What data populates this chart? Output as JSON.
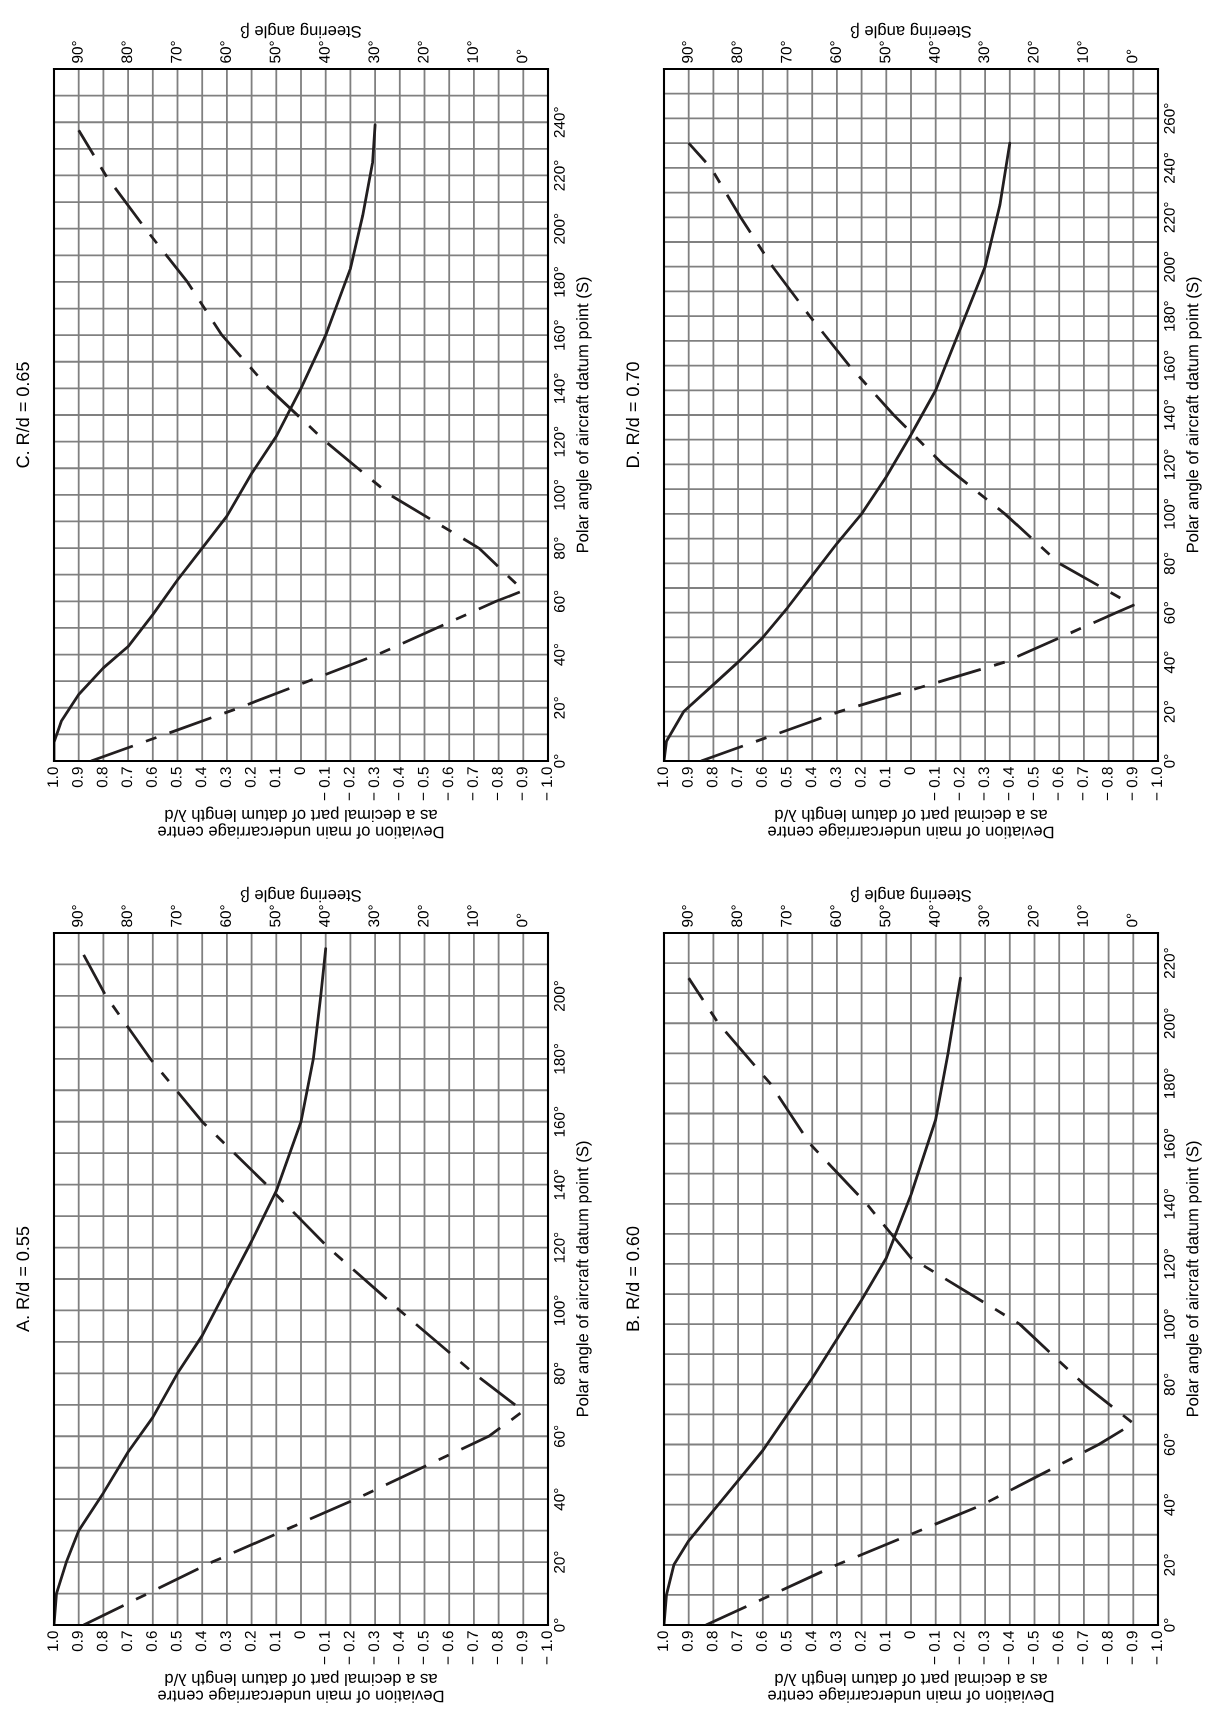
{
  "chart_data": [
    {
      "type": "line",
      "title": "A. R/d = 0.55",
      "ylabel": "Polar angle of aircraft datum point (S)",
      "xlabel": "Deviation of main undercarriage centre\nas a decimal part of datum length λ/d",
      "x2label": "Steering angle β",
      "ylim": [
        0,
        220
      ],
      "yticks": [
        {
          "value": 0,
          "label": "0°"
        },
        {
          "value": 10,
          "label": null
        },
        {
          "value": 20,
          "label": "20°"
        },
        {
          "value": 30,
          "label": null
        },
        {
          "value": 40,
          "label": "40°"
        },
        {
          "value": 50,
          "label": null
        },
        {
          "value": 60,
          "label": "60°"
        },
        {
          "value": 70,
          "label": null
        },
        {
          "value": 80,
          "label": "80°"
        },
        {
          "value": 90,
          "label": null
        },
        {
          "value": 100,
          "label": "100°"
        },
        {
          "value": 110,
          "label": null
        },
        {
          "value": 120,
          "label": "120°"
        },
        {
          "value": 130,
          "label": null
        },
        {
          "value": 140,
          "label": "140°"
        },
        {
          "value": 150,
          "label": null
        },
        {
          "value": 160,
          "label": "160°"
        },
        {
          "value": 170,
          "label": null
        },
        {
          "value": 180,
          "label": "180°"
        },
        {
          "value": 190,
          "label": null
        },
        {
          "value": 200,
          "label": "200°"
        },
        {
          "value": 210,
          "label": null
        }
      ],
      "xlim": [
        1.0,
        -1.0
      ],
      "xticks": [
        {
          "value": 1.0,
          "label": "1.0"
        },
        0.9,
        0.8,
        0.7,
        0.6,
        0.5,
        0.4,
        0.3,
        0.2,
        0.1,
        0,
        {
          "value": -0.1,
          "label": "− 0.1"
        },
        {
          "value": -0.2,
          "label": "− 0.2"
        },
        {
          "value": -0.3,
          "label": "− 0.3"
        },
        {
          "value": -0.4,
          "label": "− 0.4"
        },
        {
          "value": -0.5,
          "label": "− 0.5"
        },
        {
          "value": -0.6,
          "label": "− 0.6"
        },
        {
          "value": -0.7,
          "label": "− 0.7"
        },
        {
          "value": -0.8,
          "label": "− 0.8"
        },
        {
          "value": -0.9,
          "label": "− 0.9"
        },
        {
          "value": -1.0,
          "label": "− 1.0"
        }
      ],
      "x2lim": [
        95,
        -5
      ],
      "x2ticks": [
        {
          "value": 0,
          "label": "0°"
        },
        {
          "value": 10,
          "label": "10°"
        },
        {
          "value": 20,
          "label": "20°"
        },
        {
          "value": 30,
          "label": "30°"
        },
        {
          "value": 40,
          "label": "40°"
        },
        {
          "value": 50,
          "label": "50°"
        },
        {
          "value": 60,
          "label": "60°"
        },
        {
          "value": 70,
          "label": "70°"
        },
        {
          "value": 80,
          "label": "80°"
        },
        {
          "value": 90,
          "label": "90°"
        }
      ],
      "grid": true,
      "series": [
        {
          "color": "#231f20",
          "line_style": "solid",
          "x": [
            1.0,
            0.99,
            0.95,
            0.9,
            0.8,
            0.7,
            0.6,
            0.5,
            0.4,
            0.3,
            0.2,
            0.1,
            0.0,
            -0.05,
            -0.08,
            -0.1
          ],
          "values": [
            0,
            10,
            20,
            30,
            42,
            55,
            66,
            80,
            92,
            107,
            122,
            138,
            160,
            180,
            200,
            215
          ]
        },
        {
          "color": "#231f20",
          "line_style": "dashed",
          "axis": "x2",
          "x": [
            89,
            63,
            34,
            7,
            0,
            10,
            25,
            39.5,
            52,
            65,
            75.5,
            84.5,
            90
          ],
          "values": [
            0,
            20,
            40,
            60,
            68,
            80,
            100,
            120,
            140,
            160,
            180,
            200,
            216
          ]
        }
      ]
    },
    {
      "type": "line",
      "title": "B. R/d = 0.60",
      "ylabel": "Polar angle of aircraft datum point (S)",
      "xlabel": "Deviation of main undercarriage centre\nas a decimal part of datum length λ/d",
      "x2label": "Steering angle β",
      "ylim": [
        0,
        230
      ],
      "yticks": [
        {
          "value": 0,
          "label": "0°"
        },
        {
          "value": 10,
          "label": null
        },
        {
          "value": 20,
          "label": "20°"
        },
        {
          "value": 30,
          "label": null
        },
        {
          "value": 40,
          "label": "40°"
        },
        {
          "value": 50,
          "label": null
        },
        {
          "value": 60,
          "label": "60°"
        },
        {
          "value": 70,
          "label": null
        },
        {
          "value": 80,
          "label": "80°"
        },
        {
          "value": 90,
          "label": null
        },
        {
          "value": 100,
          "label": "100°"
        },
        {
          "value": 110,
          "label": null
        },
        {
          "value": 120,
          "label": "120°"
        },
        {
          "value": 130,
          "label": null
        },
        {
          "value": 140,
          "label": "140°"
        },
        {
          "value": 150,
          "label": null
        },
        {
          "value": 160,
          "label": "160°"
        },
        {
          "value": 170,
          "label": null
        },
        {
          "value": 180,
          "label": "180°"
        },
        {
          "value": 190,
          "label": null
        },
        {
          "value": 200,
          "label": "200°"
        },
        {
          "value": 210,
          "label": null
        },
        {
          "value": 220,
          "label": "220°"
        }
      ],
      "xlim": [
        1.0,
        -1.0
      ],
      "xticks": [
        {
          "value": 1.0,
          "label": "1.0"
        },
        0.9,
        0.8,
        0.7,
        0.6,
        0.5,
        0.4,
        0.3,
        0.2,
        0.1,
        0,
        {
          "value": -0.1,
          "label": "− 0.1"
        },
        {
          "value": -0.2,
          "label": "− 0.2"
        },
        {
          "value": -0.3,
          "label": "− 0.3"
        },
        {
          "value": -0.4,
          "label": "− 0.4"
        },
        {
          "value": -0.5,
          "label": "− 0.5"
        },
        {
          "value": -0.6,
          "label": "− 0.6"
        },
        {
          "value": -0.7,
          "label": "− 0.7"
        },
        {
          "value": -0.8,
          "label": "− 0.8"
        },
        {
          "value": -0.9,
          "label": "− 0.9"
        },
        {
          "value": -1.0,
          "label": "− 1.0"
        }
      ],
      "x2lim": [
        95,
        -5
      ],
      "x2ticks": [
        {
          "value": 0,
          "label": "0°"
        },
        {
          "value": 10,
          "label": "10°"
        },
        {
          "value": 20,
          "label": "20°"
        },
        {
          "value": 30,
          "label": "30°"
        },
        {
          "value": 40,
          "label": "40°"
        },
        {
          "value": 50,
          "label": "50°"
        },
        {
          "value": 60,
          "label": "60°"
        },
        {
          "value": 70,
          "label": "70°"
        },
        {
          "value": 80,
          "label": "80°"
        },
        {
          "value": 90,
          "label": "90°"
        }
      ],
      "grid": true,
      "series": [
        {
          "color": "#231f20",
          "line_style": "solid",
          "x": [
            1.0,
            0.99,
            0.96,
            0.9,
            0.8,
            0.7,
            0.6,
            0.5,
            0.4,
            0.3,
            0.2,
            0.1,
            0.0,
            -0.1,
            -0.15,
            -0.2
          ],
          "values": [
            0,
            10,
            20,
            28,
            38,
            48,
            58,
            70,
            82,
            95,
            108,
            122,
            143,
            168,
            190,
            215
          ]
        },
        {
          "color": "#231f20",
          "line_style": "dashed",
          "axis": "x2",
          "x": [
            86.5,
            60,
            30.5,
            7,
            0,
            10,
            23,
            45,
            54,
            65.5,
            73.5,
            84,
            90
          ],
          "values": [
            0,
            20,
            40,
            60,
            67,
            80,
            100,
            122,
            140,
            160,
            180,
            200,
            215
          ]
        }
      ]
    },
    {
      "type": "line",
      "title": "C. R/d = 0.65",
      "ylabel": "Polar angle of aircraft datum point (S)",
      "xlabel": "Deviation of main undercarriage centre\nas a decimal part of datum length λ/d",
      "x2label": "Steering angle β",
      "ylim": [
        0,
        260
      ],
      "yticks": [
        {
          "value": 0,
          "label": "0°"
        },
        {
          "value": 10,
          "label": null
        },
        {
          "value": 20,
          "label": "20°"
        },
        {
          "value": 30,
          "label": null
        },
        {
          "value": 40,
          "label": "40°"
        },
        {
          "value": 50,
          "label": null
        },
        {
          "value": 60,
          "label": "60°"
        },
        {
          "value": 70,
          "label": null
        },
        {
          "value": 80,
          "label": "80°"
        },
        {
          "value": 90,
          "label": null
        },
        {
          "value": 100,
          "label": "100°"
        },
        {
          "value": 110,
          "label": null
        },
        {
          "value": 120,
          "label": "120°"
        },
        {
          "value": 130,
          "label": null
        },
        {
          "value": 140,
          "label": "140°"
        },
        {
          "value": 150,
          "label": null
        },
        {
          "value": 160,
          "label": "160°"
        },
        {
          "value": 170,
          "label": null
        },
        {
          "value": 180,
          "label": "180°"
        },
        {
          "value": 190,
          "label": null
        },
        {
          "value": 200,
          "label": "200°"
        },
        {
          "value": 210,
          "label": null
        },
        {
          "value": 220,
          "label": "220°"
        },
        {
          "value": 230,
          "label": null
        },
        {
          "value": 240,
          "label": "240°"
        },
        {
          "value": 250,
          "label": null
        }
      ],
      "xlim": [
        1.0,
        -1.0
      ],
      "xticks": [
        {
          "value": 1.0,
          "label": "1.0"
        },
        0.9,
        0.8,
        0.7,
        0.6,
        0.5,
        0.4,
        0.3,
        0.2,
        0.1,
        0,
        {
          "value": -0.1,
          "label": "− 0.1"
        },
        {
          "value": -0.2,
          "label": "− 0.2"
        },
        {
          "value": -0.3,
          "label": "− 0.3"
        },
        {
          "value": -0.4,
          "label": "− 0.4"
        },
        {
          "value": -0.5,
          "label": "− 0.5"
        },
        {
          "value": -0.6,
          "label": "− 0.6"
        },
        {
          "value": -0.7,
          "label": "− 0.7"
        },
        {
          "value": -0.8,
          "label": "− 0.8"
        },
        {
          "value": -0.9,
          "label": "− 0.9"
        },
        {
          "value": -1.0,
          "label": "− 1.0"
        }
      ],
      "x2lim": [
        95,
        -5
      ],
      "x2ticks": [
        {
          "value": 0,
          "label": "0°"
        },
        {
          "value": 10,
          "label": "10°"
        },
        {
          "value": 20,
          "label": "20°"
        },
        {
          "value": 30,
          "label": "30°"
        },
        {
          "value": 40,
          "label": "40°"
        },
        {
          "value": 50,
          "label": "50°"
        },
        {
          "value": 60,
          "label": "60°"
        },
        {
          "value": 70,
          "label": "70°"
        },
        {
          "value": 80,
          "label": "80°"
        },
        {
          "value": 90,
          "label": "90°"
        }
      ],
      "grid": true,
      "series": [
        {
          "color": "#231f20",
          "line_style": "solid",
          "x": [
            1.0,
            1.0,
            0.97,
            0.9,
            0.8,
            0.7,
            0.6,
            0.5,
            0.4,
            0.3,
            0.2,
            0.1,
            0.0,
            -0.1,
            -0.2,
            -0.25,
            -0.29,
            -0.3
          ],
          "values": [
            0,
            7,
            15,
            25,
            35,
            43,
            55,
            68,
            80,
            92,
            108,
            122,
            140,
            160,
            185,
            205,
            225,
            239
          ]
        },
        {
          "color": "#231f20",
          "line_style": "dashed",
          "axis": "x2",
          "x": [
            87.5,
            57.5,
            29.5,
            5.5,
            0,
            9,
            27,
            40,
            51.5,
            61,
            68,
            76.5,
            84.5,
            90
          ],
          "values": [
            0,
            20,
            40,
            60,
            64,
            80,
            100,
            120,
            140,
            160,
            180,
            200,
            220,
            237
          ]
        }
      ]
    },
    {
      "type": "line",
      "title": "D. R/d = 0.70",
      "ylabel": "Polar angle of aircraft datum point (S)",
      "xlabel": "Deviation of main undercarriage centre\nas a decimal part of datum length λ/d",
      "x2label": "Steering angle β",
      "ylim": [
        0,
        280
      ],
      "yticks": [
        {
          "value": 0,
          "label": "0°"
        },
        {
          "value": 10,
          "label": null
        },
        {
          "value": 20,
          "label": "20°"
        },
        {
          "value": 30,
          "label": null
        },
        {
          "value": 40,
          "label": "40°"
        },
        {
          "value": 50,
          "label": null
        },
        {
          "value": 60,
          "label": "60°"
        },
        {
          "value": 70,
          "label": null
        },
        {
          "value": 80,
          "label": "80°"
        },
        {
          "value": 90,
          "label": null
        },
        {
          "value": 100,
          "label": "100°"
        },
        {
          "value": 110,
          "label": null
        },
        {
          "value": 120,
          "label": "120°"
        },
        {
          "value": 130,
          "label": null
        },
        {
          "value": 140,
          "label": "140°"
        },
        {
          "value": 150,
          "label": null
        },
        {
          "value": 160,
          "label": "160°"
        },
        {
          "value": 170,
          "label": null
        },
        {
          "value": 180,
          "label": "180°"
        },
        {
          "value": 190,
          "label": null
        },
        {
          "value": 200,
          "label": "200°"
        },
        {
          "value": 210,
          "label": null
        },
        {
          "value": 220,
          "label": "220°"
        },
        {
          "value": 230,
          "label": null
        },
        {
          "value": 240,
          "label": "240°"
        },
        {
          "value": 250,
          "label": null
        },
        {
          "value": 260,
          "label": "260°"
        },
        {
          "value": 270,
          "label": null
        }
      ],
      "xlim": [
        1.0,
        -1.0
      ],
      "xticks": [
        {
          "value": 1.0,
          "label": "1.0"
        },
        0.9,
        0.8,
        0.7,
        0.6,
        0.5,
        0.4,
        0.3,
        0.2,
        0.1,
        0,
        {
          "value": -0.1,
          "label": "− 0.1"
        },
        {
          "value": -0.2,
          "label": "− 0.2"
        },
        {
          "value": -0.3,
          "label": "− 0.3"
        },
        {
          "value": -0.4,
          "label": "− 0.4"
        },
        {
          "value": -0.5,
          "label": "− 0.5"
        },
        {
          "value": -0.6,
          "label": "− 0.6"
        },
        {
          "value": -0.7,
          "label": "− 0.7"
        },
        {
          "value": -0.8,
          "label": "− 0.8"
        },
        {
          "value": -0.9,
          "label": "− 0.9"
        },
        {
          "value": -1.0,
          "label": "− 1.0"
        }
      ],
      "x2lim": [
        95,
        -5
      ],
      "x2ticks": [
        {
          "value": 0,
          "label": "0°"
        },
        {
          "value": 10,
          "label": "10°"
        },
        {
          "value": 20,
          "label": "20°"
        },
        {
          "value": 30,
          "label": "30°"
        },
        {
          "value": 40,
          "label": "40°"
        },
        {
          "value": 50,
          "label": "50°"
        },
        {
          "value": 60,
          "label": "60°"
        },
        {
          "value": 70,
          "label": "70°"
        },
        {
          "value": 80,
          "label": "80°"
        },
        {
          "value": 90,
          "label": "90°"
        }
      ],
      "grid": true,
      "series": [
        {
          "color": "#231f20",
          "line_style": "solid",
          "x": [
            1.0,
            0.99,
            0.92,
            0.81,
            0.7,
            0.6,
            0.5,
            0.4,
            0.3,
            0.2,
            0.1,
            0.0,
            -0.1,
            -0.2,
            -0.3,
            -0.36,
            -0.4
          ],
          "values": [
            0,
            8,
            20,
            30,
            40,
            50,
            62,
            75,
            88,
            100,
            115,
            132,
            150,
            175,
            200,
            225,
            250
          ]
        },
        {
          "color": "#231f20",
          "line_style": "dashed",
          "axis": "x2",
          "x": [
            87.5,
            59.5,
            26,
            3.5,
            0,
            15,
            26,
            38.5,
            48.5,
            57.5,
            65.5,
            73,
            79.5,
            85.5,
            90
          ],
          "values": [
            0,
            20,
            40,
            60,
            63,
            80,
            100,
            120,
            140,
            160,
            180,
            200,
            220,
            240,
            250
          ]
        }
      ]
    }
  ]
}
